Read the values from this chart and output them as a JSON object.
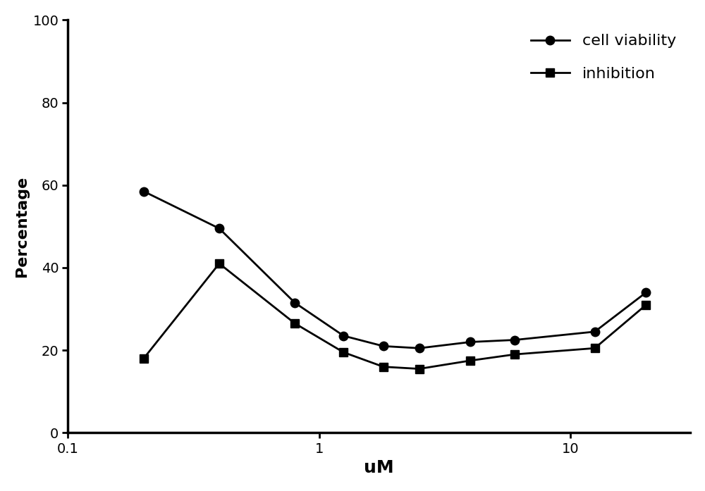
{
  "x_values": [
    0.2,
    0.4,
    0.8,
    1.25,
    1.8,
    2.5,
    4.0,
    6.0,
    12.5,
    20.0
  ],
  "cell_viability": [
    58.5,
    49.5,
    31.5,
    23.5,
    21.0,
    20.5,
    22.0,
    22.5,
    24.5,
    34.0
  ],
  "inhibition": [
    18.0,
    41.0,
    26.5,
    19.5,
    16.0,
    15.5,
    17.5,
    19.0,
    20.5,
    31.0
  ],
  "xlabel": "uM",
  "ylabel": "Percentage",
  "legend_cell": "cell viability",
  "legend_inhib": "inhibition",
  "xlim": [
    0.1,
    30
  ],
  "ylim": [
    0,
    100
  ],
  "yticks": [
    0,
    20,
    40,
    60,
    80,
    100
  ],
  "xticks": [
    0.1,
    1,
    10
  ],
  "xtick_labels": [
    "0.1",
    "1",
    "10"
  ],
  "line_color": "#000000",
  "marker_circle": "o",
  "marker_square": "s",
  "markersize": 9,
  "linewidth": 2.0,
  "xlabel_fontsize": 18,
  "ylabel_fontsize": 16,
  "tick_fontsize": 14,
  "legend_fontsize": 16,
  "bg_color": "#ffffff"
}
